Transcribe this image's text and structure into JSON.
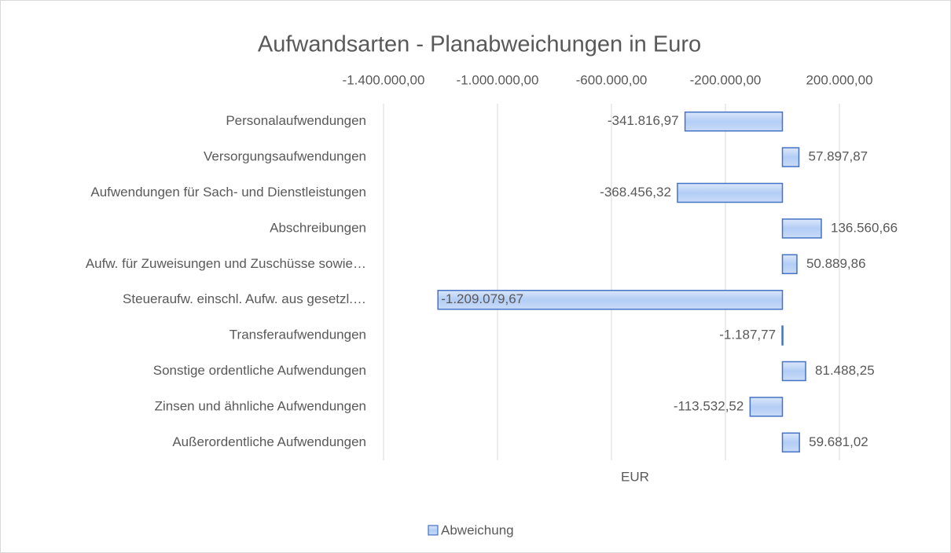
{
  "chart_data": {
    "type": "hbar",
    "title": "Aufwandsarten - Planabweichungen in Euro",
    "x_label": "EUR",
    "categories": [
      "Personalaufwendungen",
      "Versorgungsaufwendungen",
      "Aufwendungen für Sach- und Dienstleistungen",
      "Abschreibungen",
      "Aufw. für Zuweisungen und Zuschüsse sowie…",
      "Steueraufw. einschl. Aufw. aus gesetzl.…",
      "Transferaufwendungen",
      "Sonstige ordentliche Aufwendungen",
      "Zinsen und ähnliche Aufwendungen",
      "Außerordentliche Aufwendungen"
    ],
    "series": [
      {
        "name": "Abweichung",
        "color": "#4472c4",
        "values": [
          -341816.97,
          57897.87,
          -368456.32,
          136560.66,
          50889.86,
          -1209079.67,
          -1187.77,
          81488.25,
          -113532.52,
          59681.02
        ],
        "value_labels": [
          "-341.816,97",
          "57.897,87",
          "-368.456,32",
          "136.560,66",
          "50.889,86",
          "-1.209.079,67",
          "-1.187,77",
          "81.488,25",
          "-113.532,52",
          "59.681,02"
        ]
      }
    ],
    "xlim": [
      -1400000,
      200000
    ],
    "xticks": [
      {
        "value": -1400000,
        "label": "-1.400.000,00"
      },
      {
        "value": -1000000,
        "label": "-1.000.000,00"
      },
      {
        "value": -600000,
        "label": "-600.000,00"
      },
      {
        "value": -200000,
        "label": "-200.000,00"
      },
      {
        "value": 200000,
        "label": "200.000,00"
      }
    ],
    "grid": true,
    "legend": "bottom"
  }
}
